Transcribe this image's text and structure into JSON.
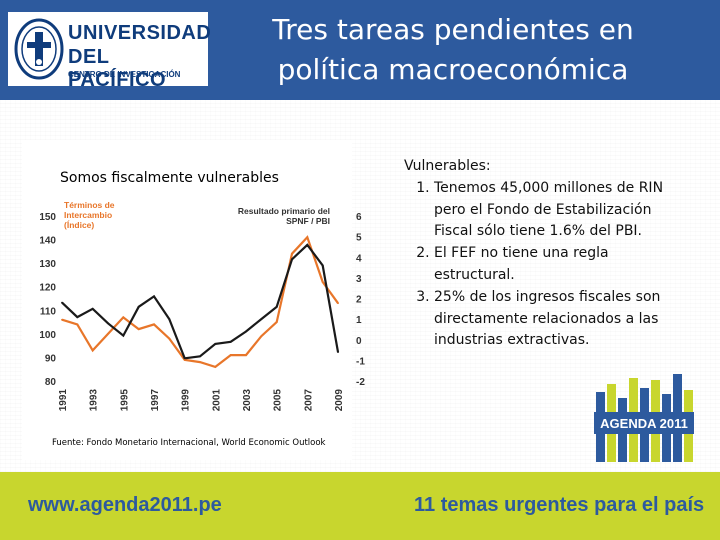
{
  "header": {
    "title": "Tres tareas pendientes en política macroeconómica",
    "logo": {
      "line1": "UNIVERSIDAD",
      "line2": "DEL PACÍFICO",
      "line3": "CENTRO DE INVESTIGACIÓN"
    }
  },
  "chart_heading": "Somos fiscalmente vulnerables",
  "source": "Fuente: Fondo Monetario Internacional, World Economic Outlook",
  "right_panel": {
    "heading": "Vulnerables:",
    "items": [
      "Tenemos 45,000 millones de RIN pero el Fondo de Estabilización Fiscal sólo tiene 1.6% del PBI.",
      "El FEF no tiene una regla estructural.",
      "25% de los ingresos fiscales son directamente relacionados a las industrias extractivas."
    ]
  },
  "agenda_logo": "AGENDA 2011",
  "footer": {
    "url": "www.agenda2011.pe",
    "tagline": "11 temas urgentes para el país"
  },
  "colors": {
    "header": "#2d5a9e",
    "footer": "#c8d62e",
    "orange_series": "#e8762a",
    "black_series": "#1a1a1a"
  },
  "chart_data": {
    "type": "line",
    "x": [
      1991,
      1992,
      1993,
      1994,
      1995,
      1996,
      1997,
      1998,
      1999,
      2000,
      2001,
      2002,
      2003,
      2004,
      2005,
      2006,
      2007,
      2008,
      2009
    ],
    "x_tick_labels": [
      "1991",
      "1993",
      "1995",
      "1997",
      "1999",
      "2001",
      "2003",
      "2005",
      "2007",
      "2009"
    ],
    "y_left_ticks": [
      "80",
      "90",
      "100",
      "110",
      "120",
      "130",
      "140",
      "150"
    ],
    "y_right_ticks": [
      "-2",
      "-1",
      "0",
      "1",
      "2",
      "3",
      "4",
      "5",
      "6"
    ],
    "ylim_left": [
      80,
      150
    ],
    "ylim_right": [
      -2,
      6
    ],
    "series": [
      {
        "name": "Términos de Intercambio (Índice)",
        "axis": "left",
        "color": "#e8762a",
        "values": [
          106,
          104,
          93,
          100,
          107,
          102,
          104,
          98,
          89,
          88,
          86,
          91,
          91,
          99,
          105,
          134,
          141,
          122,
          113
        ]
      },
      {
        "name": "Resultado primario del SPNF / PBI",
        "axis": "right",
        "color": "#1a1a1a",
        "values": [
          1.8,
          1.1,
          1.5,
          0.8,
          0.2,
          1.6,
          2.1,
          1.0,
          -0.9,
          -0.8,
          -0.2,
          -0.1,
          0.4,
          1.0,
          1.6,
          3.9,
          4.6,
          3.6,
          -0.6
        ]
      }
    ],
    "legend_left": "Términos de Intercambio (Índice)",
    "legend_right": "Resultado primario del SPNF / PBI",
    "grid": false
  }
}
